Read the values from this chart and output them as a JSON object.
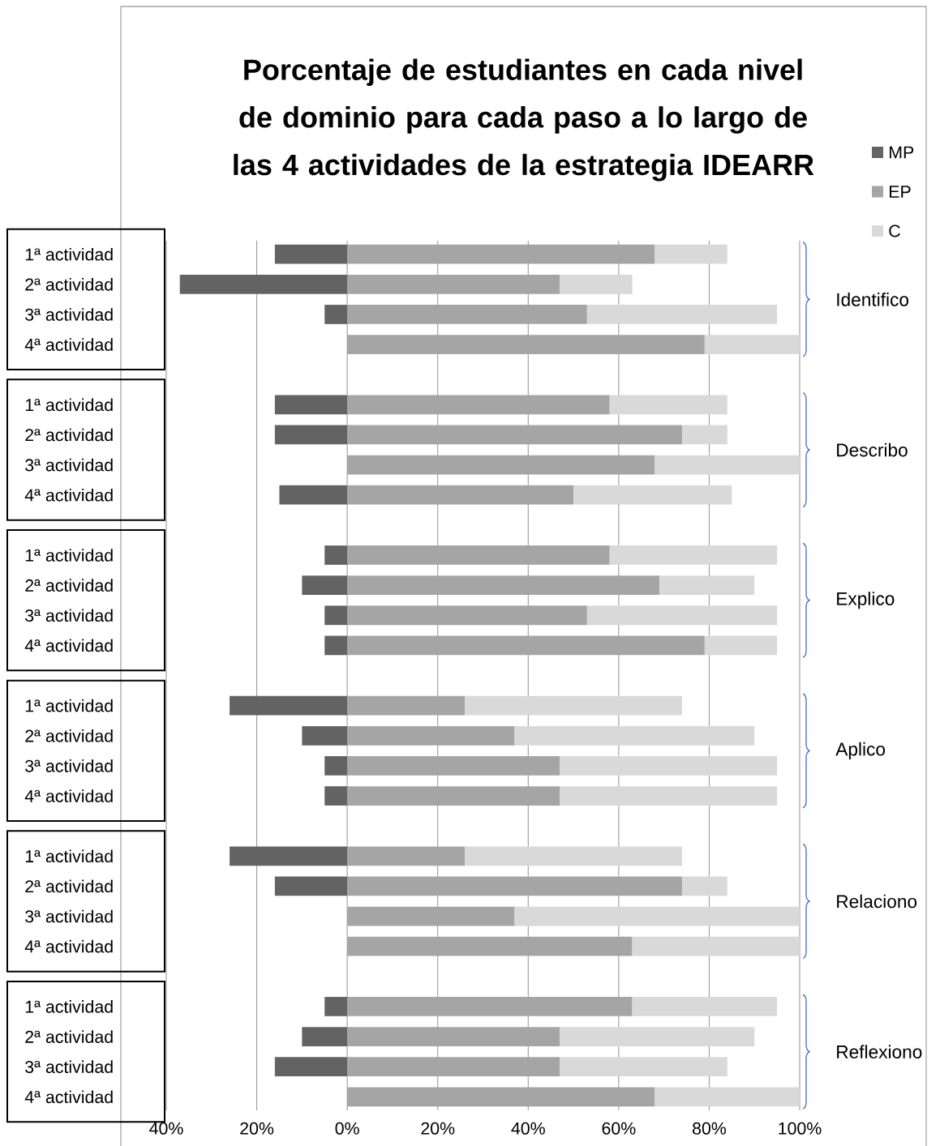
{
  "chart_data": {
    "type": "bar",
    "orientation": "horizontal",
    "stacked": true,
    "title": "Porcentaje de estudiantes en cada nivel de dominio  para cada paso a lo largo de las 4 actividades de la estrategia IDEARR",
    "categories": [
      "1ª actividad",
      "2ª actividad",
      "3ª actividad",
      "4ª actividad",
      "1ª actividad",
      "2ª actividad",
      "3ª actividad",
      "4ª actividad",
      "1ª actividad",
      "2ª actividad",
      "3ª actividad",
      "4ª actividad",
      "1ª actividad",
      "2ª actividad",
      "3ª actividad",
      "4ª actividad",
      "1ª actividad",
      "2ª actividad",
      "3ª actividad",
      "4ª actividad",
      "1ª actividad",
      "2ª actividad",
      "3ª actividad",
      "4ª actividad"
    ],
    "series": [
      {
        "name": "MP",
        "color": "#636363",
        "values": [
          -16,
          -37,
          -5,
          0,
          -16,
          -16,
          0,
          -15,
          -5,
          -10,
          -5,
          -5,
          -26,
          -10,
          -5,
          -5,
          -26,
          -16,
          0,
          0,
          -5,
          -10,
          -16,
          0
        ]
      },
      {
        "name": "EP",
        "color": "#a5a5a5",
        "values": [
          68,
          47,
          53,
          79,
          58,
          74,
          68,
          50,
          58,
          69,
          53,
          79,
          26,
          37,
          47,
          47,
          26,
          74,
          37,
          63,
          63,
          47,
          47,
          68
        ]
      },
      {
        "name": "C",
        "color": "#d9d9d9",
        "values": [
          16,
          16,
          42,
          21,
          26,
          10,
          32,
          35,
          37,
          21,
          42,
          16,
          48,
          53,
          48,
          48,
          48,
          10,
          63,
          37,
          32,
          43,
          37,
          32
        ]
      }
    ],
    "xlim": [
      -40,
      100
    ],
    "xticks": [
      {
        "value": -40,
        "label": "40%"
      },
      {
        "value": -20,
        "label": "20%"
      },
      {
        "value": 0,
        "label": "0%"
      },
      {
        "value": 20,
        "label": "20%"
      },
      {
        "value": 40,
        "label": "40%"
      },
      {
        "value": 60,
        "label": "60%"
      },
      {
        "value": 80,
        "label": "80%"
      },
      {
        "value": 100,
        "label": "100%"
      }
    ],
    "grid": "x",
    "legend": "top right",
    "annotations": [
      "Identifico",
      "Describo",
      "Explico",
      "Aplico",
      "Relaciono",
      "Reflexiono"
    ]
  }
}
